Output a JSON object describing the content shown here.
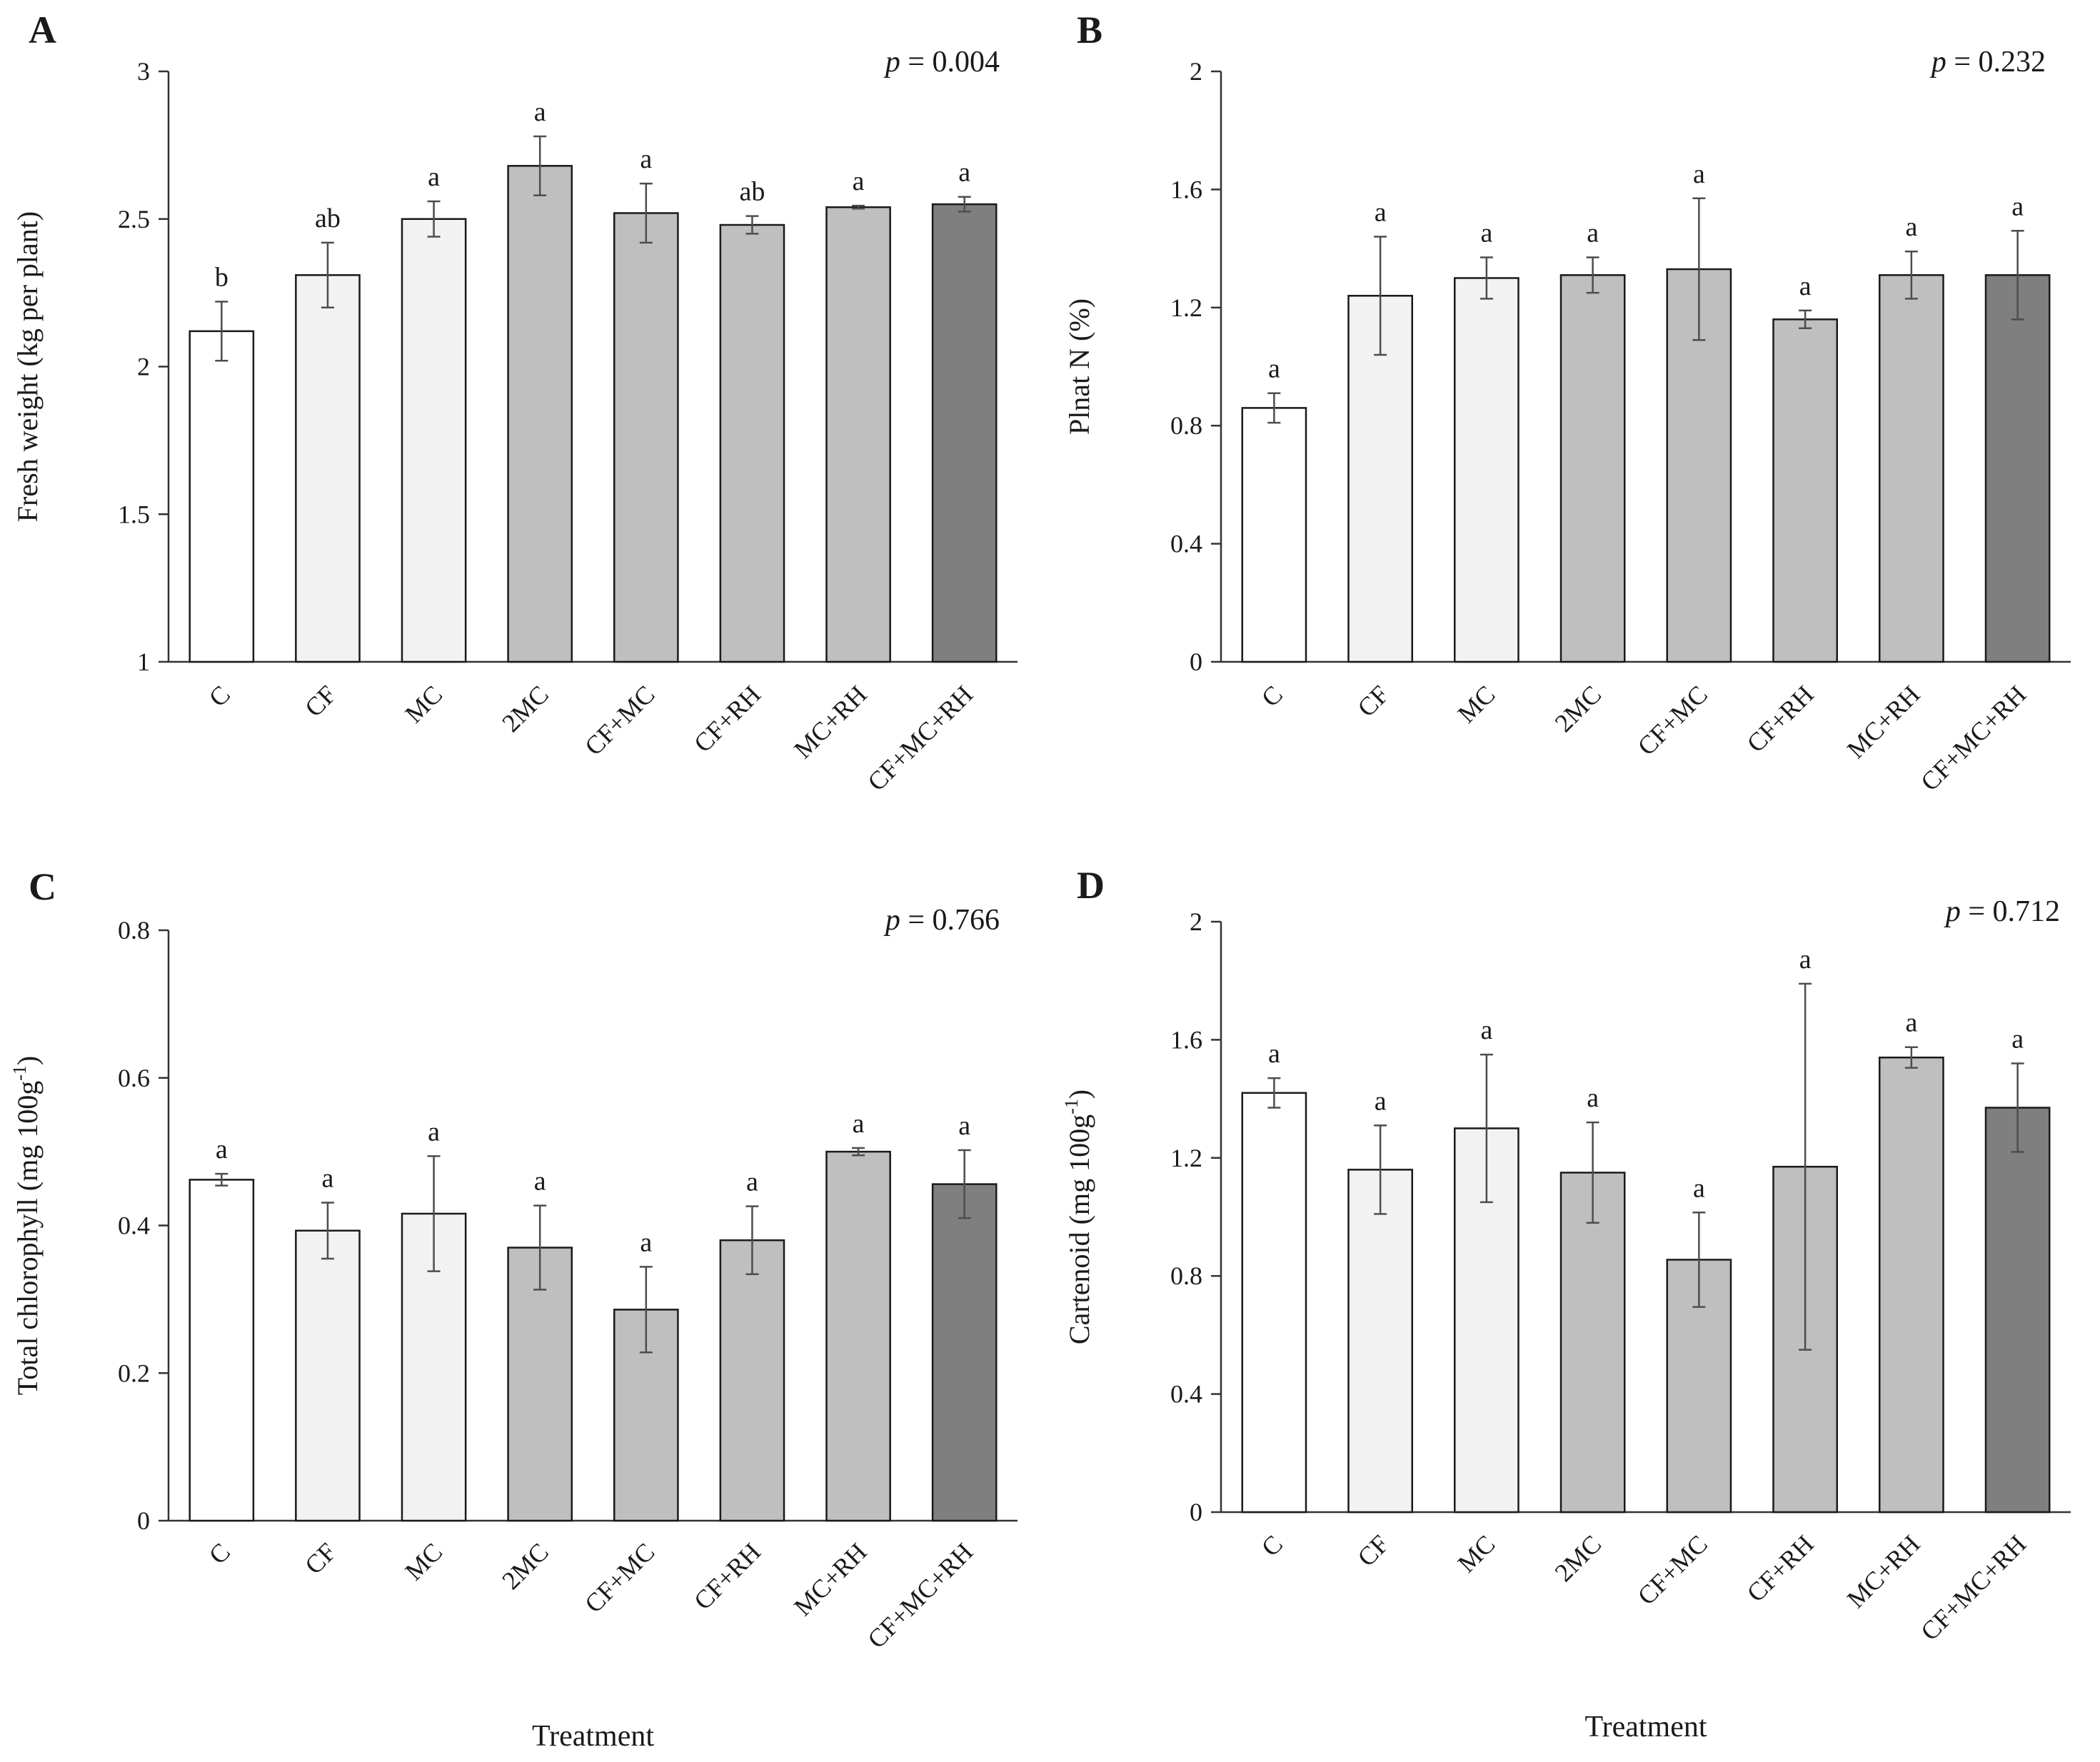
{
  "chart_data": [
    {
      "type": "bar",
      "panel": "A",
      "categories": [
        "C",
        "CF",
        "MC",
        "2MC",
        "CF+MC",
        "CF+RH",
        "MC+RH",
        "CF+MC+RH"
      ],
      "values": [
        2.12,
        2.31,
        2.5,
        2.68,
        2.52,
        2.48,
        2.54,
        2.55
      ],
      "errors": [
        0.1,
        0.11,
        0.06,
        0.1,
        0.1,
        0.03,
        0.005,
        0.025
      ],
      "significance": [
        "b",
        "ab",
        "a",
        "a",
        "a",
        "ab",
        "a",
        "a"
      ],
      "p_value_label": "p",
      "p_value_text": " = 0.004",
      "ylabel": "Fresh weight (kg per plant)",
      "xlabel": "",
      "ylim": [
        1,
        3
      ],
      "yticks": [
        "1",
        "1.5",
        "2",
        "2.5",
        "3"
      ],
      "bar_colors": [
        "#ffffff",
        "#f2f2f2",
        "#f2f2f2",
        "#bfbfbf",
        "#bfbfbf",
        "#bfbfbf",
        "#bfbfbf",
        "#7f7f7f"
      ]
    },
    {
      "type": "bar",
      "panel": "B",
      "categories": [
        "C",
        "CF",
        "MC",
        "2MC",
        "CF+MC",
        "CF+RH",
        "MC+RH",
        "CF+MC+RH"
      ],
      "values": [
        0.86,
        1.24,
        1.3,
        1.31,
        1.33,
        1.16,
        1.31,
        1.31
      ],
      "errors": [
        0.05,
        0.2,
        0.07,
        0.06,
        0.24,
        0.03,
        0.08,
        0.15
      ],
      "significance": [
        "a",
        "a",
        "a",
        "a",
        "a",
        "a",
        "a",
        "a"
      ],
      "p_value_label": "p",
      "p_value_text": " = 0.232",
      "ylabel": "Plnat N (%)",
      "xlabel": "",
      "ylim": [
        0,
        2
      ],
      "yticks": [
        "0",
        "0.4",
        "0.8",
        "1.2",
        "1.6",
        "2"
      ],
      "bar_colors": [
        "#ffffff",
        "#f2f2f2",
        "#f2f2f2",
        "#bfbfbf",
        "#bfbfbf",
        "#bfbfbf",
        "#bfbfbf",
        "#7f7f7f"
      ]
    },
    {
      "type": "bar",
      "panel": "C",
      "categories": [
        "C",
        "CF",
        "MC",
        "2MC",
        "CF+MC",
        "CF+RH",
        "MC+RH",
        "CF+MC+RH"
      ],
      "values": [
        0.462,
        0.393,
        0.416,
        0.37,
        0.286,
        0.38,
        0.5,
        0.456
      ],
      "errors": [
        0.008,
        0.038,
        0.078,
        0.057,
        0.058,
        0.046,
        0.005,
        0.046
      ],
      "significance": [
        "a",
        "a",
        "a",
        "a",
        "a",
        "a",
        "a",
        "a"
      ],
      "p_value_label": "p",
      "p_value_text": " = 0.766",
      "ylabel_main": "Total chlorophyll (mg 100g",
      "ylabel_sup": "-1",
      "ylabel_end": ")",
      "xlabel": "Treatment",
      "ylim": [
        0,
        0.8
      ],
      "yticks": [
        "0",
        "0.2",
        "0.4",
        "0.6",
        "0.8"
      ],
      "bar_colors": [
        "#ffffff",
        "#f2f2f2",
        "#f2f2f2",
        "#bfbfbf",
        "#bfbfbf",
        "#bfbfbf",
        "#bfbfbf",
        "#7f7f7f"
      ]
    },
    {
      "type": "bar",
      "panel": "D",
      "categories": [
        "C",
        "CF",
        "MC",
        "2MC",
        "CF+MC",
        "CF+RH",
        "MC+RH",
        "CF+MC+RH"
      ],
      "values": [
        1.42,
        1.16,
        1.3,
        1.15,
        0.855,
        1.17,
        1.54,
        1.37
      ],
      "errors": [
        0.05,
        0.15,
        0.25,
        0.17,
        0.16,
        0.62,
        0.035,
        0.15
      ],
      "significance": [
        "a",
        "a",
        "a",
        "a",
        "a",
        "a",
        "a",
        "a"
      ],
      "p_value_label": "p",
      "p_value_text": " = 0.712",
      "ylabel_main": "Cartenoid (mg 100g",
      "ylabel_sup": "-1",
      "ylabel_end": ")",
      "xlabel": "Treatment",
      "ylim": [
        0,
        2
      ],
      "yticks": [
        "0",
        "0.4",
        "0.8",
        "1.2",
        "1.6",
        "2"
      ],
      "bar_colors": [
        "#ffffff",
        "#f2f2f2",
        "#f2f2f2",
        "#bfbfbf",
        "#bfbfbf",
        "#bfbfbf",
        "#bfbfbf",
        "#7f7f7f"
      ]
    }
  ]
}
